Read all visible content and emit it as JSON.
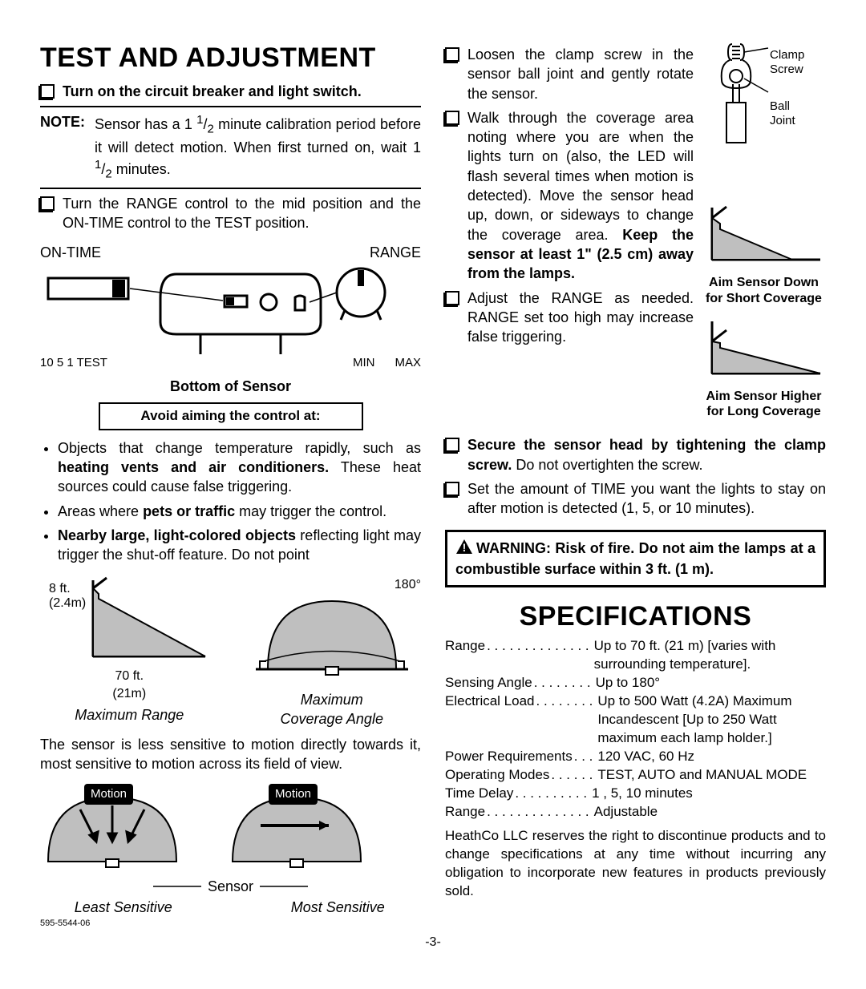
{
  "title": "TEST AND ADJUSTMENT",
  "step1": "Turn on the circuit breaker and light switch.",
  "note_label": "NOTE:",
  "note_text_1": "Sensor has a 1 ",
  "note_half": "1/2",
  "note_text_2": " minute calibration period before it will detect motion. When first turned on, wait 1 ",
  "note_text_3": " minutes.",
  "step2": "Turn the RANGE control to the mid position and the ON-TIME control to the TEST position.",
  "ontime_label": "ON-TIME",
  "range_label": "RANGE",
  "ontime_positions": "10 5 1 TEST",
  "min_label": "MIN",
  "max_label": "MAX",
  "bottom_caption": "Bottom of Sensor",
  "avoid_caption": "Avoid aiming the control at:",
  "bullet1_a": "Objects that change temperature rapidly, such as ",
  "bullet1_b": "heating vents and air conditioners.",
  "bullet1_c": " These heat sources could cause false triggering.",
  "bullet2_a": "Areas where ",
  "bullet2_b": "pets or traffic",
  "bullet2_c": " may trigger the control.",
  "bullet3_a": "Nearby large, light-colored objects",
  "bullet3_b": " reflecting light may trigger the shut-off feature. Do not point",
  "range_ft": "8 ft.",
  "range_m": "(2.4m)",
  "range_dist_ft": "70 ft.",
  "range_dist_m": "(21m)",
  "max_range_caption": "Maximum Range",
  "angle_180": "180°",
  "max_angle_caption_1": "Maximum",
  "max_angle_caption_2": "Coverage Angle",
  "sensitivity_para": "The sensor is less sensitive to motion directly towards it, most sensitive to motion across its field of view.",
  "motion_label": "Motion",
  "sensor_label": "Sensor",
  "least_sensitive": "Least Sensitive",
  "most_sensitive": "Most Sensitive",
  "doc_id": "595-5544-06",
  "col2_step1": "Loosen the clamp screw in the sensor ball joint and gently rotate the sensor.",
  "col2_step2_a": "Walk through the coverage area noting where you are when the lights turn on (also, the LED will flash several times when motion is detected). Move the sensor head up, down, or sideways to change the coverage area. ",
  "col2_step2_b": "Keep the sensor at least 1\" (2.5 cm) away from the lamps.",
  "col2_step3": "Adjust the RANGE as needed. RANGE set too high may increase false triggering.",
  "col2_step4_a": "Secure the sensor head by tightening the clamp screw.",
  "col2_step4_b": " Do not overtighten the screw.",
  "col2_step5": "Set the amount of TIME you want the lights to stay on after motion is detected (1, 5, or 10 minutes).",
  "clamp_screw": "Clamp Screw",
  "ball_joint": "Ball Joint",
  "aim_down": "Aim Sensor Down for Short Coverage",
  "aim_up": "Aim Sensor Higher for Long Coverage",
  "warning": "WARNING: Risk of fire. Do not aim the lamps at a combustible surface within 3 ft. (1 m).",
  "spec_title": "SPECIFICATIONS",
  "specs": [
    {
      "label": "Range",
      "dots": ". . . . . . . . . . . . . .",
      "value": "Up to 70 ft. (21 m) [varies with surrounding temperature]."
    },
    {
      "label": "Sensing Angle",
      "dots": ". . . . . . . .",
      "value": "Up to 180°"
    },
    {
      "label": "Electrical Load",
      "dots": ". . . . . . . .",
      "value": "Up to 500 Watt (4.2A) Maximum Incandescent [Up to 250 Watt maximum each lamp holder.]"
    },
    {
      "label": "Power Requirements",
      "dots": ". . .",
      "value": "120 VAC, 60 Hz"
    },
    {
      "label": "Operating Modes",
      "dots": ". . . . . .",
      "value": "TEST, AUTO and MANUAL MODE"
    },
    {
      "label": "Time Delay",
      "dots": " . . . . . . . . . .",
      "value": "1 , 5, 10 minutes"
    },
    {
      "label": "Range",
      "dots": ". . . . . . . . . . . . . .",
      "value": "Adjustable"
    }
  ],
  "disclaimer": "HeathCo LLC reserves the right to discontinue products and to change specifications at any time without incurring any obligation to incorporate new features in products previously sold.",
  "page_num": "-3-"
}
